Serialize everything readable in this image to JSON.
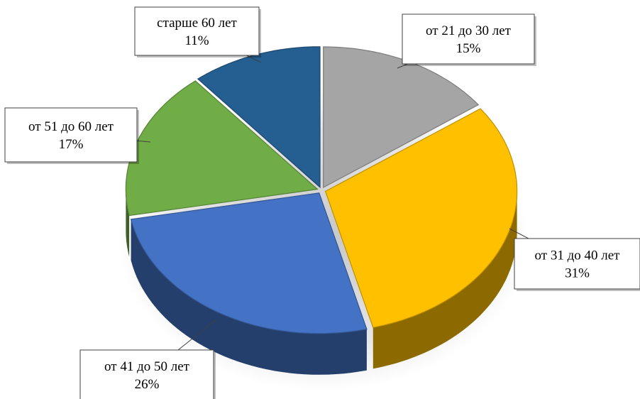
{
  "chart_data": {
    "type": "pie",
    "style": "3d-exploded",
    "title": "",
    "slices": [
      {
        "label": "от 21 до 30 лет",
        "value": 15,
        "value_label": "15%",
        "color": "#a5a5a5"
      },
      {
        "label": "от 31 до 40 лет",
        "value": 31,
        "value_label": "31%",
        "color": "#ffc000"
      },
      {
        "label": "от 41 до 50 лет",
        "value": 26,
        "value_label": "26%",
        "color": "#4472c4"
      },
      {
        "label": "от 51 до 60 лет",
        "value": 17,
        "value_label": "17%",
        "color": "#70ad47"
      },
      {
        "label": "старше 60 лет",
        "value": 11,
        "value_label": "11%",
        "color": "#255e91"
      }
    ]
  }
}
